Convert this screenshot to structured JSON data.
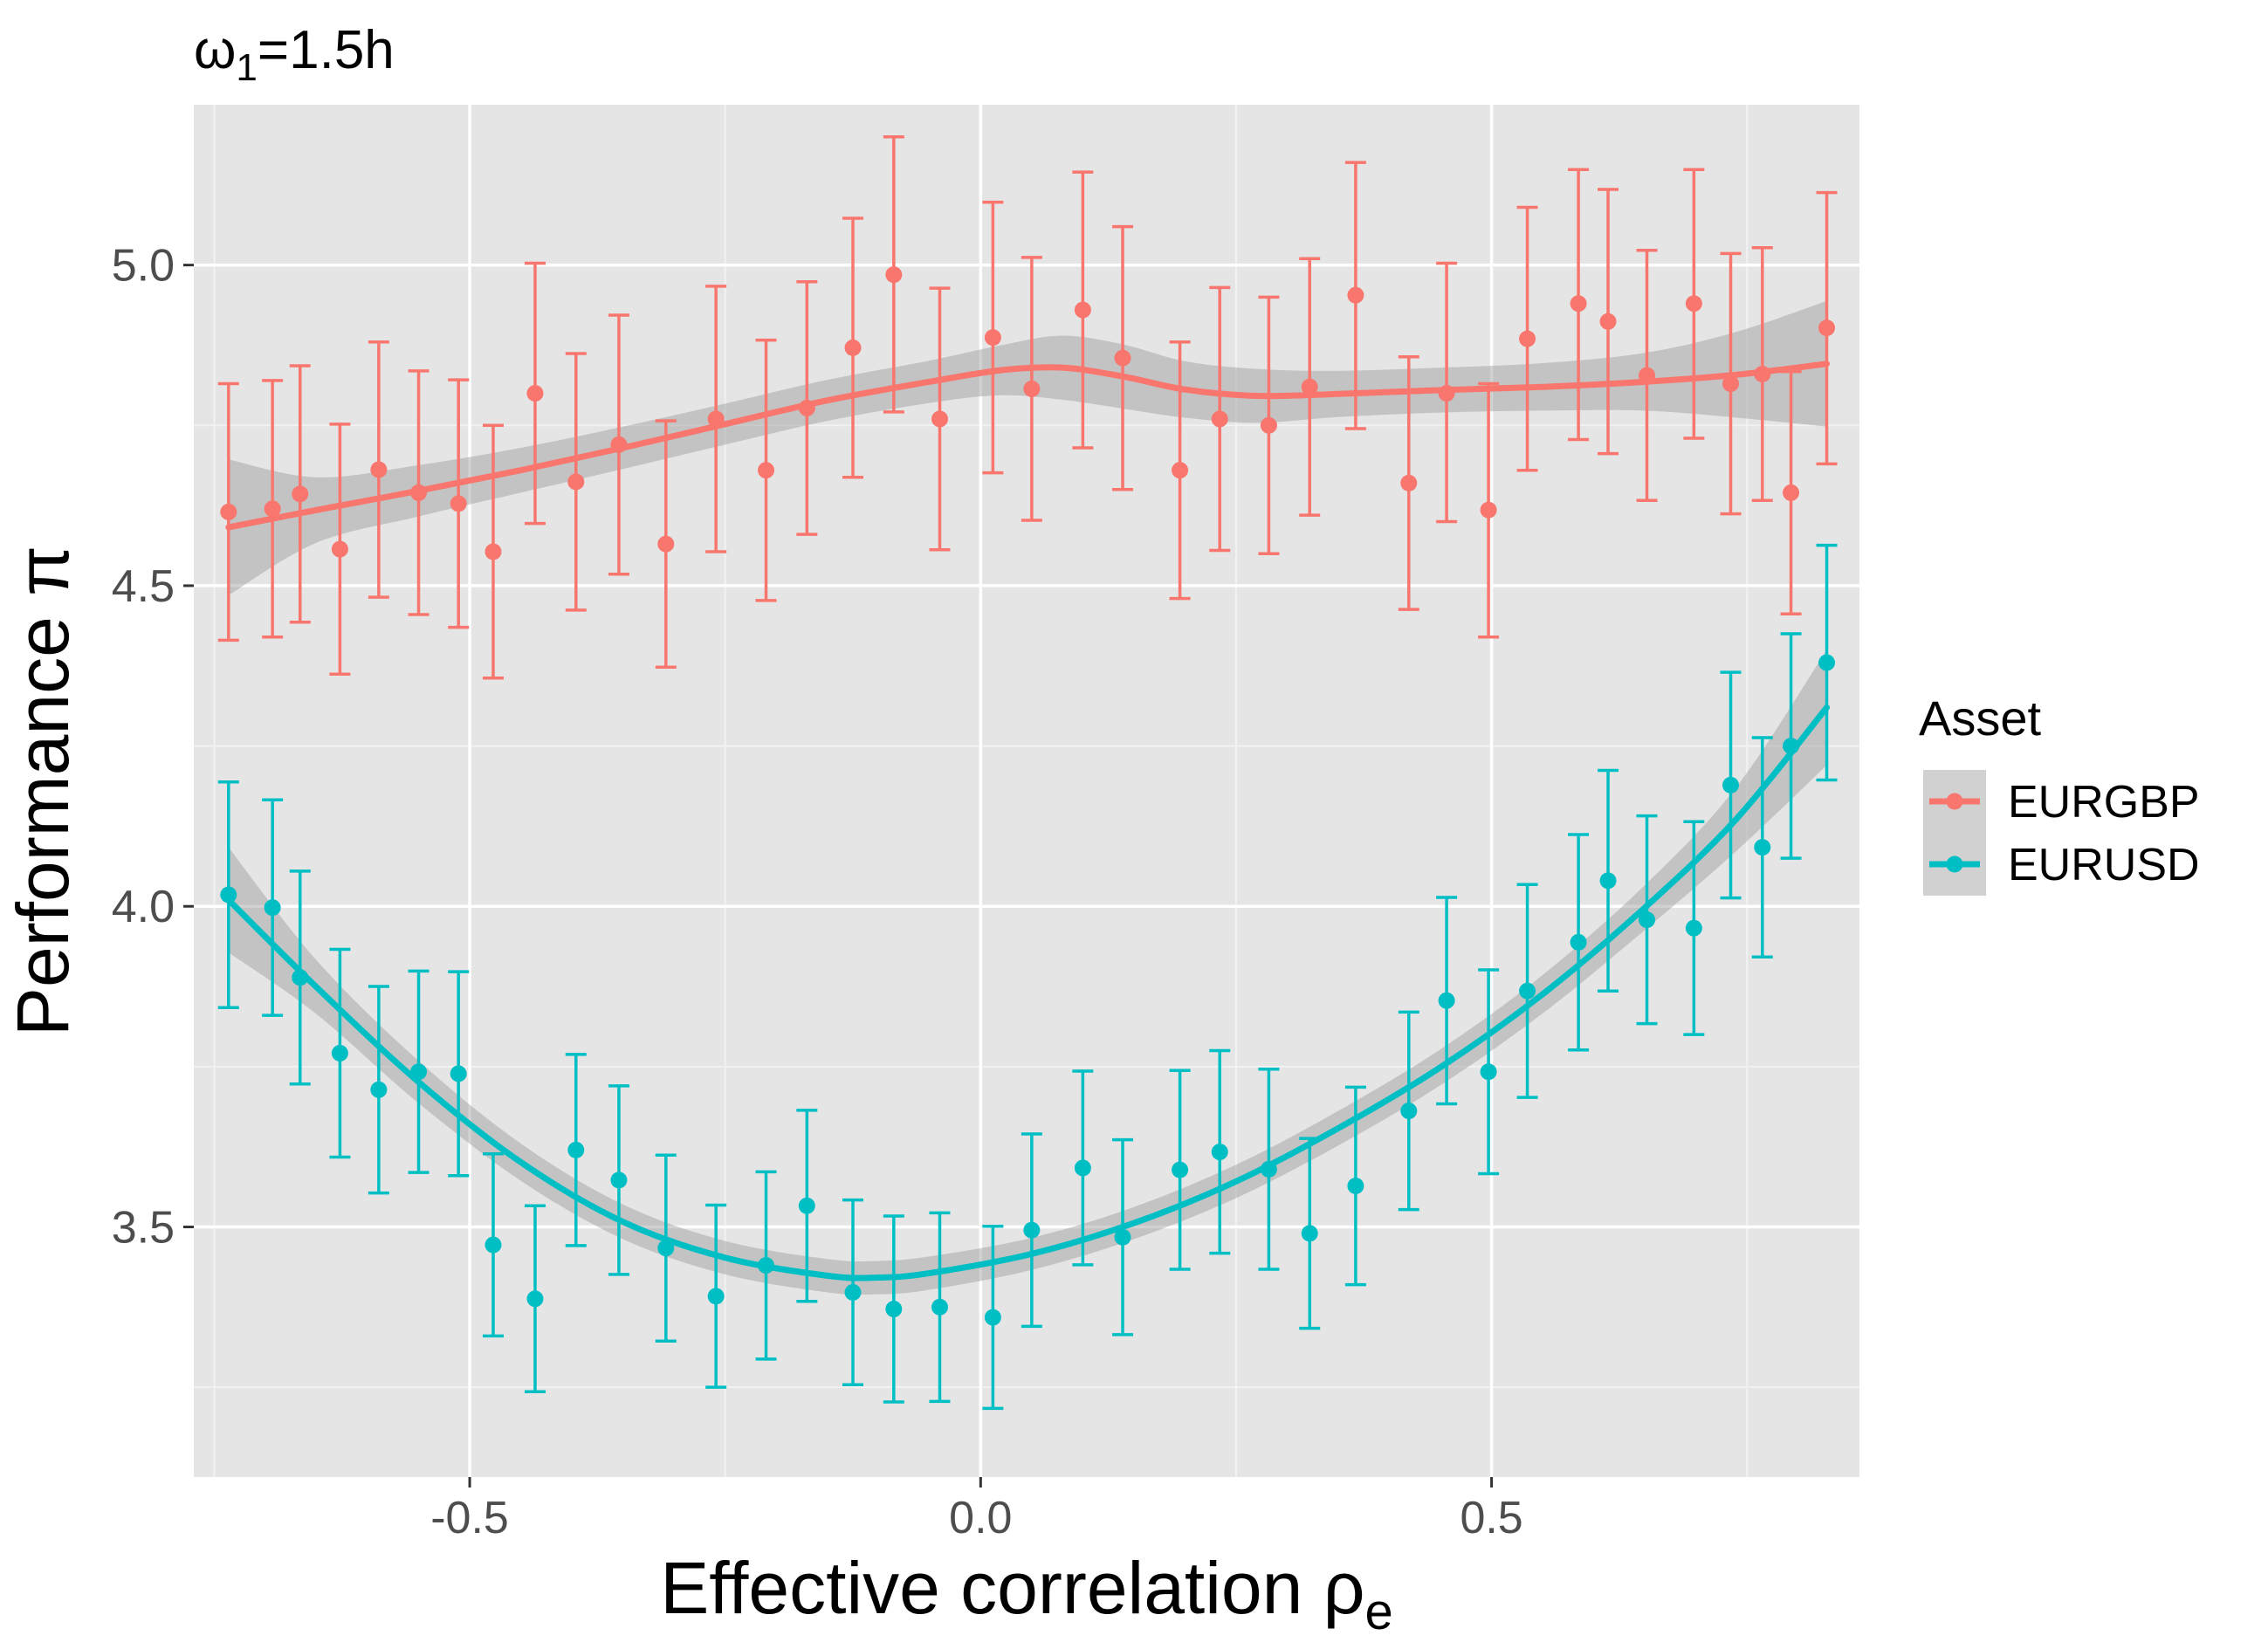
{
  "chart_data": {
    "type": "scatter",
    "title_main": "ω",
    "title_sub": "1",
    "title_rest": "=1.5h",
    "xlabel_main": "Effective correlation ρ",
    "xlabel_sub": "e",
    "ylabel": "Performance π",
    "xlim": [
      -0.77,
      0.86
    ],
    "ylim": [
      3.11,
      5.25
    ],
    "x_ticks": [
      -0.5,
      0.0,
      0.5
    ],
    "x_tick_labels": [
      "-0.5",
      "0.0",
      "0.5"
    ],
    "y_ticks": [
      3.5,
      4.0,
      4.5,
      5.0
    ],
    "y_tick_labels": [
      "3.5",
      "4.0",
      "4.5",
      "5.0"
    ],
    "grid": true,
    "background": "#e5e5e5",
    "legend": {
      "title": "Asset",
      "position": "right"
    },
    "series": [
      {
        "name": "EURGBP",
        "color": "#f8766d",
        "points": [
          {
            "x": -0.736,
            "y": 4.615,
            "lo": 4.415,
            "hi": 4.815
          },
          {
            "x": -0.693,
            "y": 4.62,
            "lo": 4.42,
            "hi": 4.82
          },
          {
            "x": -0.666,
            "y": 4.643,
            "lo": 4.443,
            "hi": 4.843
          },
          {
            "x": -0.627,
            "y": 4.557,
            "lo": 4.362,
            "hi": 4.752
          },
          {
            "x": -0.589,
            "y": 4.681,
            "lo": 4.482,
            "hi": 4.88
          },
          {
            "x": -0.55,
            "y": 4.645,
            "lo": 4.455,
            "hi": 4.835
          },
          {
            "x": -0.511,
            "y": 4.628,
            "lo": 4.435,
            "hi": 4.821
          },
          {
            "x": -0.477,
            "y": 4.553,
            "lo": 4.356,
            "hi": 4.75
          },
          {
            "x": -0.436,
            "y": 4.8,
            "lo": 4.597,
            "hi": 5.003
          },
          {
            "x": -0.396,
            "y": 4.662,
            "lo": 4.462,
            "hi": 4.862
          },
          {
            "x": -0.354,
            "y": 4.72,
            "lo": 4.518,
            "hi": 4.922
          },
          {
            "x": -0.308,
            "y": 4.565,
            "lo": 4.373,
            "hi": 4.757
          },
          {
            "x": -0.259,
            "y": 4.76,
            "lo": 4.553,
            "hi": 4.967
          },
          {
            "x": -0.21,
            "y": 4.68,
            "lo": 4.477,
            "hi": 4.883
          },
          {
            "x": -0.17,
            "y": 4.777,
            "lo": 4.58,
            "hi": 4.974
          },
          {
            "x": -0.125,
            "y": 4.871,
            "lo": 4.669,
            "hi": 5.073
          },
          {
            "x": -0.085,
            "y": 4.985,
            "lo": 4.771,
            "hi": 5.2
          },
          {
            "x": -0.04,
            "y": 4.76,
            "lo": 4.556,
            "hi": 4.964
          },
          {
            "x": 0.012,
            "y": 4.887,
            "lo": 4.676,
            "hi": 5.098
          },
          {
            "x": 0.05,
            "y": 4.807,
            "lo": 4.602,
            "hi": 5.012
          },
          {
            "x": 0.1,
            "y": 4.93,
            "lo": 4.715,
            "hi": 5.145
          },
          {
            "x": 0.139,
            "y": 4.855,
            "lo": 4.65,
            "hi": 5.06
          },
          {
            "x": 0.195,
            "y": 4.68,
            "lo": 4.48,
            "hi": 4.88
          },
          {
            "x": 0.234,
            "y": 4.76,
            "lo": 4.555,
            "hi": 4.965
          },
          {
            "x": 0.282,
            "y": 4.75,
            "lo": 4.55,
            "hi": 4.95
          },
          {
            "x": 0.322,
            "y": 4.81,
            "lo": 4.61,
            "hi": 5.01
          },
          {
            "x": 0.367,
            "y": 4.953,
            "lo": 4.745,
            "hi": 5.16
          },
          {
            "x": 0.419,
            "y": 4.66,
            "lo": 4.463,
            "hi": 4.857
          },
          {
            "x": 0.456,
            "y": 4.8,
            "lo": 4.6,
            "hi": 5.003
          },
          {
            "x": 0.497,
            "y": 4.618,
            "lo": 4.42,
            "hi": 4.815
          },
          {
            "x": 0.535,
            "y": 4.885,
            "lo": 4.68,
            "hi": 5.09
          },
          {
            "x": 0.585,
            "y": 4.94,
            "lo": 4.728,
            "hi": 5.149
          },
          {
            "x": 0.614,
            "y": 4.912,
            "lo": 4.706,
            "hi": 5.118
          },
          {
            "x": 0.652,
            "y": 4.828,
            "lo": 4.633,
            "hi": 5.023
          },
          {
            "x": 0.698,
            "y": 4.94,
            "lo": 4.73,
            "hi": 5.149
          },
          {
            "x": 0.734,
            "y": 4.815,
            "lo": 4.612,
            "hi": 5.018
          },
          {
            "x": 0.765,
            "y": 4.83,
            "lo": 4.633,
            "hi": 5.027
          },
          {
            "x": 0.793,
            "y": 4.645,
            "lo": 4.456,
            "hi": 4.834
          },
          {
            "x": 0.828,
            "y": 4.902,
            "lo": 4.69,
            "hi": 5.113
          }
        ],
        "smooth": [
          {
            "x": -0.736,
            "y": 4.591,
            "se_lo": 4.485,
            "se_hi": 4.697
          },
          {
            "x": -0.65,
            "y": 4.618,
            "se_lo": 4.567,
            "se_hi": 4.669
          },
          {
            "x": -0.55,
            "y": 4.648,
            "se_lo": 4.608,
            "se_hi": 4.688
          },
          {
            "x": -0.45,
            "y": 4.68,
            "se_lo": 4.645,
            "se_hi": 4.715
          },
          {
            "x": -0.35,
            "y": 4.715,
            "se_lo": 4.682,
            "se_hi": 4.748
          },
          {
            "x": -0.25,
            "y": 4.752,
            "se_lo": 4.72,
            "se_hi": 4.784
          },
          {
            "x": -0.15,
            "y": 4.789,
            "se_lo": 4.757,
            "se_hi": 4.821
          },
          {
            "x": -0.05,
            "y": 4.818,
            "se_lo": 4.785,
            "se_hi": 4.851
          },
          {
            "x": 0.02,
            "y": 4.836,
            "se_lo": 4.797,
            "se_hi": 4.875
          },
          {
            "x": 0.08,
            "y": 4.84,
            "se_lo": 4.79,
            "se_hi": 4.89
          },
          {
            "x": 0.14,
            "y": 4.826,
            "se_lo": 4.776,
            "se_hi": 4.876
          },
          {
            "x": 0.2,
            "y": 4.806,
            "se_lo": 4.762,
            "se_hi": 4.85
          },
          {
            "x": 0.27,
            "y": 4.796,
            "se_lo": 4.754,
            "se_hi": 4.838
          },
          {
            "x": 0.35,
            "y": 4.799,
            "se_lo": 4.763,
            "se_hi": 4.835
          },
          {
            "x": 0.45,
            "y": 4.805,
            "se_lo": 4.77,
            "se_hi": 4.84
          },
          {
            "x": 0.55,
            "y": 4.81,
            "se_lo": 4.773,
            "se_hi": 4.847
          },
          {
            "x": 0.65,
            "y": 4.818,
            "se_lo": 4.773,
            "se_hi": 4.863
          },
          {
            "x": 0.74,
            "y": 4.829,
            "se_lo": 4.762,
            "se_hi": 4.896
          },
          {
            "x": 0.828,
            "y": 4.846,
            "se_lo": 4.748,
            "se_hi": 4.944
          }
        ]
      },
      {
        "name": "EURUSD",
        "color": "#00bfc4",
        "points": [
          {
            "x": -0.736,
            "y": 4.018,
            "lo": 3.842,
            "hi": 4.194
          },
          {
            "x": -0.693,
            "y": 3.998,
            "lo": 3.83,
            "hi": 4.166
          },
          {
            "x": -0.666,
            "y": 3.889,
            "lo": 3.723,
            "hi": 4.055
          },
          {
            "x": -0.627,
            "y": 3.771,
            "lo": 3.609,
            "hi": 3.933
          },
          {
            "x": -0.589,
            "y": 3.714,
            "lo": 3.553,
            "hi": 3.875
          },
          {
            "x": -0.55,
            "y": 3.742,
            "lo": 3.585,
            "hi": 3.899
          },
          {
            "x": -0.511,
            "y": 3.739,
            "lo": 3.58,
            "hi": 3.898
          },
          {
            "x": -0.477,
            "y": 3.472,
            "lo": 3.33,
            "hi": 3.614
          },
          {
            "x": -0.436,
            "y": 3.388,
            "lo": 3.243,
            "hi": 3.533
          },
          {
            "x": -0.396,
            "y": 3.62,
            "lo": 3.471,
            "hi": 3.769
          },
          {
            "x": -0.354,
            "y": 3.573,
            "lo": 3.426,
            "hi": 3.72
          },
          {
            "x": -0.308,
            "y": 3.467,
            "lo": 3.322,
            "hi": 3.612
          },
          {
            "x": -0.259,
            "y": 3.392,
            "lo": 3.25,
            "hi": 3.534
          },
          {
            "x": -0.21,
            "y": 3.44,
            "lo": 3.294,
            "hi": 3.586
          },
          {
            "x": -0.17,
            "y": 3.533,
            "lo": 3.384,
            "hi": 3.682
          },
          {
            "x": -0.125,
            "y": 3.398,
            "lo": 3.254,
            "hi": 3.542
          },
          {
            "x": -0.085,
            "y": 3.372,
            "lo": 3.227,
            "hi": 3.517
          },
          {
            "x": -0.04,
            "y": 3.375,
            "lo": 3.228,
            "hi": 3.522
          },
          {
            "x": 0.012,
            "y": 3.359,
            "lo": 3.217,
            "hi": 3.501
          },
          {
            "x": 0.05,
            "y": 3.495,
            "lo": 3.345,
            "hi": 3.645
          },
          {
            "x": 0.1,
            "y": 3.592,
            "lo": 3.441,
            "hi": 3.743
          },
          {
            "x": 0.139,
            "y": 3.484,
            "lo": 3.332,
            "hi": 3.636
          },
          {
            "x": 0.195,
            "y": 3.589,
            "lo": 3.434,
            "hi": 3.744
          },
          {
            "x": 0.234,
            "y": 3.617,
            "lo": 3.459,
            "hi": 3.775
          },
          {
            "x": 0.282,
            "y": 3.59,
            "lo": 3.434,
            "hi": 3.746
          },
          {
            "x": 0.322,
            "y": 3.49,
            "lo": 3.342,
            "hi": 3.638
          },
          {
            "x": 0.367,
            "y": 3.564,
            "lo": 3.41,
            "hi": 3.718
          },
          {
            "x": 0.419,
            "y": 3.681,
            "lo": 3.527,
            "hi": 3.835
          },
          {
            "x": 0.456,
            "y": 3.853,
            "lo": 3.692,
            "hi": 4.014
          },
          {
            "x": 0.497,
            "y": 3.742,
            "lo": 3.583,
            "hi": 3.901
          },
          {
            "x": 0.535,
            "y": 3.868,
            "lo": 3.702,
            "hi": 4.034
          },
          {
            "x": 0.585,
            "y": 3.944,
            "lo": 3.776,
            "hi": 4.112
          },
          {
            "x": 0.614,
            "y": 4.04,
            "lo": 3.868,
            "hi": 4.212
          },
          {
            "x": 0.652,
            "y": 3.979,
            "lo": 3.817,
            "hi": 4.141
          },
          {
            "x": 0.698,
            "y": 3.966,
            "lo": 3.8,
            "hi": 4.132
          },
          {
            "x": 0.734,
            "y": 4.189,
            "lo": 4.013,
            "hi": 4.365
          },
          {
            "x": 0.765,
            "y": 4.092,
            "lo": 3.921,
            "hi": 4.263
          },
          {
            "x": 0.793,
            "y": 4.25,
            "lo": 4.075,
            "hi": 4.425
          },
          {
            "x": 0.828,
            "y": 4.38,
            "lo": 4.197,
            "hi": 4.563
          }
        ],
        "smooth": [
          {
            "x": -0.736,
            "y": 4.01,
            "se_lo": 3.928,
            "se_hi": 4.092
          },
          {
            "x": -0.65,
            "y": 3.874,
            "se_lo": 3.832,
            "se_hi": 3.916
          },
          {
            "x": -0.55,
            "y": 3.726,
            "se_lo": 3.693,
            "se_hi": 3.759
          },
          {
            "x": -0.45,
            "y": 3.601,
            "se_lo": 3.572,
            "se_hi": 3.63
          },
          {
            "x": -0.35,
            "y": 3.508,
            "se_lo": 3.481,
            "se_hi": 3.535
          },
          {
            "x": -0.25,
            "y": 3.452,
            "se_lo": 3.426,
            "se_hi": 3.478
          },
          {
            "x": -0.15,
            "y": 3.424,
            "se_lo": 3.398,
            "se_hi": 3.45
          },
          {
            "x": -0.1,
            "y": 3.421,
            "se_lo": 3.395,
            "se_hi": 3.447
          },
          {
            "x": -0.05,
            "y": 3.428,
            "se_lo": 3.402,
            "se_hi": 3.454
          },
          {
            "x": 0.05,
            "y": 3.458,
            "se_lo": 3.433,
            "se_hi": 3.483
          },
          {
            "x": 0.15,
            "y": 3.506,
            "se_lo": 3.481,
            "se_hi": 3.531
          },
          {
            "x": 0.25,
            "y": 3.571,
            "se_lo": 3.545,
            "se_hi": 3.597
          },
          {
            "x": 0.35,
            "y": 3.654,
            "se_lo": 3.627,
            "se_hi": 3.681
          },
          {
            "x": 0.45,
            "y": 3.749,
            "se_lo": 3.721,
            "se_hi": 3.777
          },
          {
            "x": 0.55,
            "y": 3.863,
            "se_lo": 3.833,
            "se_hi": 3.893
          },
          {
            "x": 0.65,
            "y": 3.998,
            "se_lo": 3.963,
            "se_hi": 4.033
          },
          {
            "x": 0.74,
            "y": 4.137,
            "se_lo": 4.087,
            "se_hi": 4.187
          },
          {
            "x": 0.828,
            "y": 4.31,
            "se_lo": 4.22,
            "se_hi": 4.4
          }
        ]
      }
    ]
  }
}
